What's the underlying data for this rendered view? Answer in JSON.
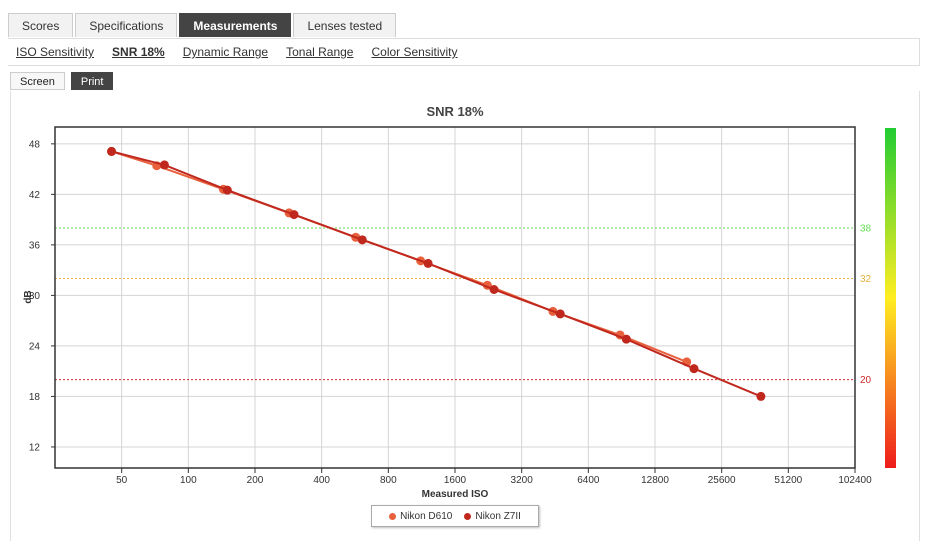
{
  "tabs": [
    {
      "label": "Scores",
      "active": false
    },
    {
      "label": "Specifications",
      "active": false
    },
    {
      "label": "Measurements",
      "active": true
    },
    {
      "label": "Lenses tested",
      "active": false
    }
  ],
  "subnav": [
    {
      "label": "ISO Sensitivity",
      "active": false
    },
    {
      "label": "SNR 18%",
      "active": true
    },
    {
      "label": "Dynamic Range",
      "active": false
    },
    {
      "label": "Tonal Range",
      "active": false
    },
    {
      "label": "Color Sensitivity",
      "active": false
    }
  ],
  "modes": [
    {
      "label": "Screen",
      "active": false
    },
    {
      "label": "Print",
      "active": true
    }
  ],
  "chart_data": {
    "type": "line",
    "title": "SNR 18%",
    "xlabel": "Measured ISO",
    "ylabel": "dB",
    "x_scale": "log2",
    "xlim": [
      25,
      102400
    ],
    "ylim": [
      9.5,
      50
    ],
    "x_ticks": [
      50,
      100,
      200,
      400,
      800,
      1600,
      3200,
      6400,
      12800,
      25600,
      51200,
      102400
    ],
    "y_ticks": [
      12,
      18,
      24,
      30,
      36,
      42,
      48
    ],
    "grid": true,
    "legend_position": "bottom",
    "reference_lines": [
      {
        "value": 38,
        "label": "38",
        "color": "#66dd55"
      },
      {
        "value": 32,
        "label": "32",
        "color": "#e8b040"
      },
      {
        "value": 20,
        "label": "20",
        "color": "#cc2a2a"
      }
    ],
    "quality_bar_colors": [
      "#22cc33",
      "#ffee22",
      "#ee1c1c"
    ],
    "series": [
      {
        "name": "Nikon D610",
        "color": "#e8603c",
        "points": [
          [
            45,
            47.1
          ],
          [
            72,
            45.4
          ],
          [
            144,
            42.6
          ],
          [
            285,
            39.8
          ],
          [
            570,
            36.9
          ],
          [
            1120,
            34.1
          ],
          [
            2240,
            31.2
          ],
          [
            4430,
            28.1
          ],
          [
            8900,
            25.3
          ],
          [
            17800,
            22.1
          ]
        ]
      },
      {
        "name": "Nikon Z7II",
        "color": "#c0281e",
        "points": [
          [
            45,
            47.1
          ],
          [
            78,
            45.5
          ],
          [
            150,
            42.5
          ],
          [
            300,
            39.6
          ],
          [
            610,
            36.6
          ],
          [
            1210,
            33.8
          ],
          [
            2400,
            30.7
          ],
          [
            4780,
            27.8
          ],
          [
            9500,
            24.8
          ],
          [
            19200,
            21.3
          ],
          [
            38500,
            18.0
          ]
        ]
      }
    ]
  }
}
